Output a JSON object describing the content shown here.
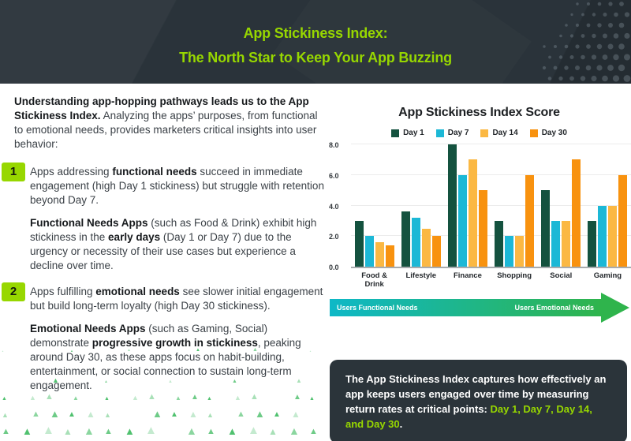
{
  "header": {
    "title_line1": "App Stickiness Index:",
    "title_line2": "The North Star to Keep Your App Buzzing"
  },
  "left": {
    "intro": [
      {
        "t": "Understanding app-hopping pathways leads us to the App Stickiness Index.",
        "b": true
      },
      {
        "t": " Analyzing the apps’ purposes, from functional to emotional needs, provides marketers critical insights into user behavior:",
        "b": false
      }
    ],
    "items": [
      {
        "num": "1",
        "para1": [
          {
            "t": "Apps addressing ",
            "b": false
          },
          {
            "t": "functional needs",
            "b": true
          },
          {
            "t": " succeed in immediate engagement (high Day 1 stickiness) but struggle with retention beyond Day 7.",
            "b": false
          }
        ],
        "para2": [
          {
            "t": "Functional Needs Apps",
            "b": true
          },
          {
            "t": " (such as Food & Drink) exhibit high stickiness in the ",
            "b": false
          },
          {
            "t": "early days",
            "b": true
          },
          {
            "t": " (Day 1 or Day 7) due to the urgency or necessity of their use cases but experience a decline over time.",
            "b": false
          }
        ]
      },
      {
        "num": "2",
        "para1": [
          {
            "t": "Apps fulfilling ",
            "b": false
          },
          {
            "t": "emotional needs",
            "b": true
          },
          {
            "t": " see slower initial engagement but build long-term loyalty (high Day 30 stickiness).",
            "b": false
          }
        ],
        "para2": [
          {
            "t": "Emotional Needs Apps",
            "b": true
          },
          {
            "t": " (such as Gaming, Social) demonstrate ",
            "b": false
          },
          {
            "t": "progressive growth in stickiness",
            "b": true
          },
          {
            "t": ", peaking around Day 30, as these apps focus on habit-building, entertainment, or social connection to sustain long-term engagement.",
            "b": false
          }
        ]
      }
    ]
  },
  "chart_data": {
    "type": "bar",
    "title": "App Stickiness Index Score",
    "categories": [
      "Food & Drink",
      "Lifestyle",
      "Finance",
      "Shopping",
      "Social",
      "Gaming"
    ],
    "series": [
      {
        "name": "Day 1",
        "color": "#14523f",
        "values": [
          3.0,
          3.6,
          8.0,
          3.0,
          5.0,
          3.0
        ]
      },
      {
        "name": "Day 7",
        "color": "#1cb8d6",
        "values": [
          2.0,
          3.2,
          6.0,
          2.0,
          3.0,
          4.0
        ]
      },
      {
        "name": "Day 14",
        "color": "#fbb843",
        "values": [
          1.6,
          2.5,
          7.0,
          2.0,
          3.0,
          4.0
        ]
      },
      {
        "name": "Day 30",
        "color": "#f8920f",
        "values": [
          1.4,
          2.0,
          5.0,
          6.0,
          7.0,
          6.0
        ]
      }
    ],
    "ylim": [
      0,
      8
    ],
    "yticks": [
      0,
      2,
      4,
      6,
      8
    ],
    "ytick_labels": [
      "0.0",
      "2.0",
      "4.0",
      "6.0",
      "8.0"
    ],
    "grid": true,
    "legend_position": "top"
  },
  "arrow": {
    "left_label": "Users Functional Needs",
    "right_label": "Users Emotional Needs",
    "gradient_from": "#0eb8c7",
    "gradient_to": "#2fb44c"
  },
  "footnote": {
    "segments": [
      {
        "t": "The App Stickiness Index captures how effectively an app keeps users engaged over time by measuring return rates at critical points: "
      },
      {
        "t": "Day 1, Day 7, Day 14, and Day 30",
        "hl": true
      },
      {
        "t": "."
      }
    ]
  },
  "colors": {
    "accent": "#97d700",
    "header_bg": "#2a333a",
    "box_bg": "#2b343a",
    "triangle": "#3dba5f"
  }
}
